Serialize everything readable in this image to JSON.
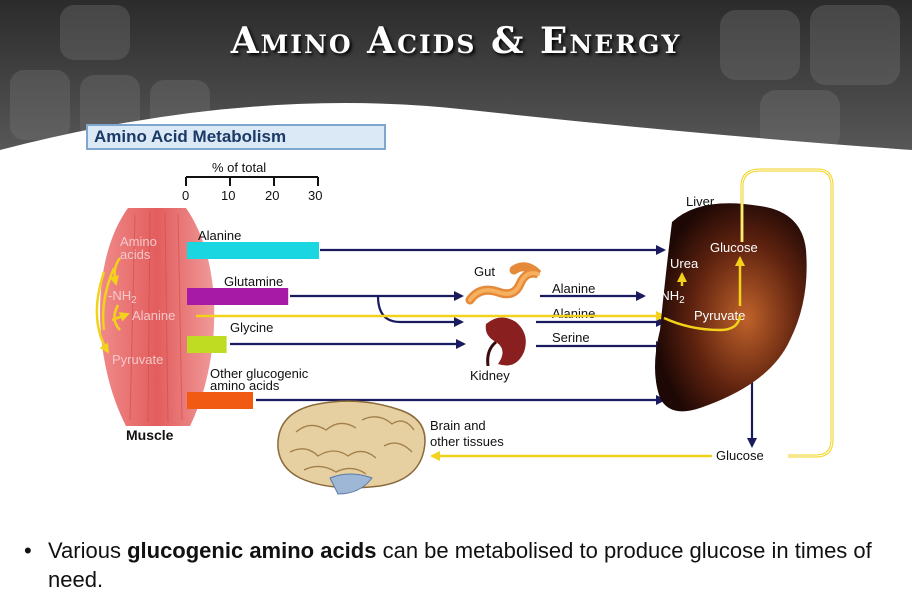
{
  "slide": {
    "title": "Amino Acids & Energy"
  },
  "figure": {
    "title": "Amino Acid Metabolism",
    "scale": {
      "label": "% of total",
      "ticks": [
        "0",
        "10",
        "20",
        "30"
      ]
    },
    "sources": [
      {
        "name": "Alanine",
        "percent": 30,
        "color": "#19d6e0"
      },
      {
        "name": "Glutamine",
        "percent": 23,
        "color": "#a61aa6"
      },
      {
        "name": "Glycine",
        "percent": 9,
        "color": "#bfdc22"
      },
      {
        "name_line1": "Other glucogenic",
        "name_line2": "amino acids",
        "percent": 15,
        "color": "#f05a12"
      }
    ],
    "muscle": {
      "label": "Muscle",
      "amino_line1": "Amino",
      "amino_line2": "acids",
      "nh2": "-NH",
      "nh2_sub": "2",
      "alanine": "Alanine",
      "pyruvate": "Pyruvate"
    },
    "gut": {
      "label": "Gut",
      "output": "Alanine"
    },
    "kidney": {
      "label": "Kidney",
      "output_alanine": "Alanine",
      "output_serine": "Serine"
    },
    "liver": {
      "label": "Liver",
      "glucose": "Glucose",
      "urea": "Urea",
      "nh2": "-NH",
      "nh2_sub": "2",
      "pyruvate": "Pyruvate"
    },
    "glucose_out": "Glucose",
    "brain": {
      "line1": "Brain and",
      "line2": "other tissues"
    }
  },
  "bullet": {
    "symbol": "•",
    "pre": "Various ",
    "bold": "glucogenic amino acids",
    "post": " can be metabolised to produce glucose in times of need."
  }
}
